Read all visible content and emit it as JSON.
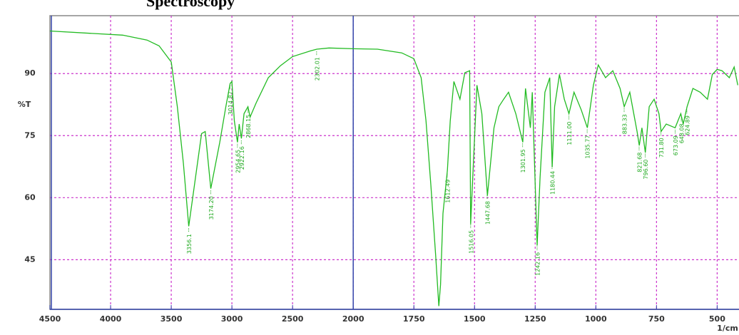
{
  "chart_data": {
    "type": "line",
    "title": "Spectroscopy",
    "ylabel": "%T",
    "xlabel": "1/cm",
    "xlim": [
      4500,
      410
    ],
    "xscale_break": 2000,
    "xscale_break_factor": 2,
    "xmarker": 2000,
    "ylim": [
      33,
      104
    ],
    "xticks": [
      4500,
      4000,
      3500,
      3000,
      2500,
      2000,
      1750,
      1500,
      1250,
      1000,
      750,
      500
    ],
    "yticks": [
      45,
      60,
      75,
      90
    ],
    "grid": true,
    "color": "#22bb22",
    "x": [
      4500,
      3900,
      3700,
      3600,
      3500,
      3450,
      3400,
      3356,
      3250,
      3220,
      3174,
      3100,
      3050,
      3015,
      3000,
      2980,
      2954,
      2940,
      2922,
      2900,
      2868,
      2850,
      2800,
      2700,
      2600,
      2500,
      2350,
      2300,
      2200,
      2000,
      1900,
      1800,
      1750,
      1720,
      1700,
      1680,
      1660,
      1647,
      1640,
      1630,
      1612,
      1600,
      1585,
      1560,
      1540,
      1520,
      1516,
      1490,
      1470,
      1447,
      1420,
      1400,
      1380,
      1360,
      1330,
      1301,
      1290,
      1270,
      1262,
      1242,
      1230,
      1210,
      1190,
      1180,
      1170,
      1150,
      1130,
      1111,
      1090,
      1060,
      1035,
      1010,
      990,
      960,
      930,
      900,
      883,
      860,
      830,
      821,
      810,
      796,
      780,
      760,
      740,
      731,
      710,
      673,
      650,
      640,
      624,
      600,
      570,
      540,
      520,
      500,
      480,
      450,
      430,
      415
    ],
    "values": [
      100.3,
      99.3,
      98.1,
      96.7,
      92.8,
      82,
      68.3,
      53.1,
      75.5,
      76,
      62.2,
      73.4,
      82,
      87.6,
      88.1,
      78.6,
      73.4,
      77.8,
      74.3,
      80.3,
      82,
      79.5,
      82.9,
      89,
      91.9,
      94.1,
      95.5,
      95.9,
      96.2,
      96,
      95.9,
      95,
      93.6,
      89,
      78.6,
      63.1,
      45.9,
      33.8,
      39,
      56.2,
      66.6,
      78.6,
      88.1,
      83.8,
      90.2,
      90.7,
      53.6,
      87.2,
      80.3,
      60.5,
      76.9,
      82,
      83.8,
      85.5,
      80.3,
      73.4,
      86.4,
      76.9,
      85.5,
      48.4,
      64.8,
      85.5,
      89,
      67.4,
      82,
      89.8,
      83.8,
      80.3,
      85.5,
      81.2,
      76.9,
      87.2,
      92.1,
      89,
      90.7,
      86.4,
      82,
      85.5,
      76,
      72.6,
      76.9,
      70.9,
      82,
      83.8,
      80.3,
      76,
      77.8,
      76.9,
      80.3,
      77.8,
      82,
      86.4,
      85.5,
      83.8,
      89.8,
      91,
      90.7,
      89,
      91.6,
      87.2
    ],
    "annotations": [
      {
        "value": 3356.1,
        "label": "3356.1"
      },
      {
        "value": 3174.2,
        "label": "3174.20"
      },
      {
        "value": 3014.87,
        "label": "3014.87"
      },
      {
        "value": 2954.65,
        "label": "2954.65"
      },
      {
        "value": 2922.16,
        "label": "2922.16"
      },
      {
        "value": 2868.15,
        "label": "2868.15"
      },
      {
        "value": 2302.01,
        "label": "2302.01"
      },
      {
        "value": 1612.49,
        "label": "1612.49"
      },
      {
        "value": 1516.05,
        "label": "1516.05"
      },
      {
        "value": 1447.68,
        "label": "1447.68"
      },
      {
        "value": 1301.95,
        "label": "1301.95"
      },
      {
        "value": 1242.16,
        "label": "1242.16"
      },
      {
        "value": 1180.44,
        "label": "1180.44"
      },
      {
        "value": 1111.0,
        "label": "1111.00"
      },
      {
        "value": 1035.77,
        "label": "1035.77"
      },
      {
        "value": 883.33,
        "label": "883.33"
      },
      {
        "value": 821.68,
        "label": "821.68"
      },
      {
        "value": 796.6,
        "label": "796.60"
      },
      {
        "value": 731.8,
        "label": "731.80"
      },
      {
        "value": 673.09,
        "label": "673.09"
      },
      {
        "value": 648.08,
        "label": "648.08"
      },
      {
        "value": 624.89,
        "label": "624.89"
      }
    ]
  }
}
